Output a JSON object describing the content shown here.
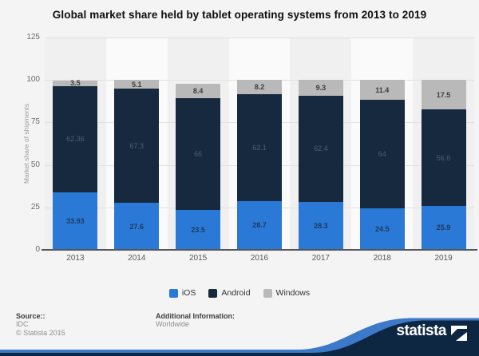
{
  "title": "Global market share held by tablet operating systems from 2013 to 2019",
  "chart_data": {
    "type": "bar",
    "stacked": true,
    "title": "Global market share held by tablet operating systems from 2013 to 2019",
    "xlabel": "",
    "ylabel": "Market share of shipments",
    "categories": [
      "2013",
      "2014",
      "2015",
      "2016",
      "2017",
      "2018",
      "2019"
    ],
    "series": [
      {
        "name": "iOS",
        "color": "#2b79d6",
        "label_color": "#1c3a5e",
        "label_bold": true,
        "values": [
          33.93,
          27.6,
          23.5,
          28.7,
          28.3,
          24.5,
          25.9
        ]
      },
      {
        "name": "Android",
        "color": "#16293e",
        "label_color": "#4b5e72",
        "label_bold": false,
        "values": [
          62.36,
          67.3,
          66,
          63.1,
          62.4,
          64,
          56.6
        ]
      },
      {
        "name": "Windows",
        "color": "#b9b9b9",
        "label_color": "#3d3d3d",
        "label_bold": true,
        "values": [
          3.5,
          5.1,
          8.4,
          8.2,
          9.3,
          11.4,
          17.5
        ]
      }
    ],
    "yticks": [
      0,
      25,
      50,
      75,
      100,
      125
    ],
    "ylim": [
      0,
      125
    ],
    "grid": true,
    "legend_position": "bottom",
    "band_colors": [
      "#f0f0f0",
      "#fafafa"
    ]
  },
  "footer": {
    "source_label": "Source::",
    "source_lines": [
      "IDC",
      "© Statista 2015"
    ],
    "additional_label": "Additional Information:",
    "additional_lines": [
      "Worldwide"
    ]
  },
  "branding": {
    "wordmark": "statista",
    "navy": "#0d2743",
    "blue": "#3c79c8"
  }
}
